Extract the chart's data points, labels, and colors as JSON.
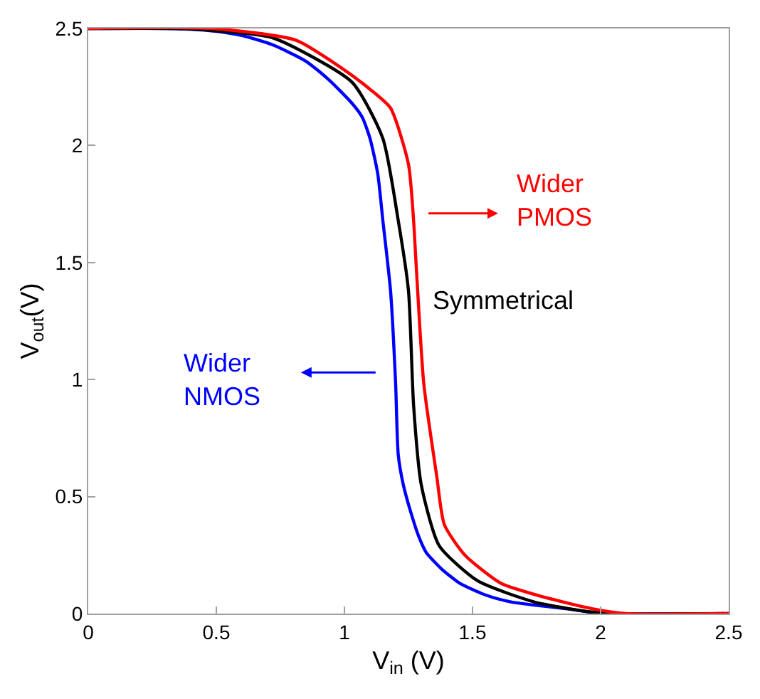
{
  "chart_data": {
    "type": "line",
    "xlabel": "V$_{in}$ (V)",
    "ylabel": "V$_{out}$(V)",
    "xlim": [
      0,
      2.5
    ],
    "xticks": [
      0,
      0.5,
      1,
      1.5,
      2,
      2.5
    ],
    "ylim": [
      0,
      2.5
    ],
    "yticks": [
      0,
      0.5,
      1,
      1.5,
      2,
      2.5
    ],
    "grid": false,
    "marker": "none",
    "line_style": "solid",
    "series": [
      {
        "name": "Wider NMOS",
        "color": "#0000ff",
        "x": [
          0,
          0.3,
          0.48,
          0.6,
          0.72,
          0.85,
          0.94,
          1.03,
          1.07,
          1.1,
          1.13,
          1.15,
          1.18,
          1.2,
          1.21,
          1.23,
          1.26,
          1.29,
          1.32,
          1.38,
          1.45,
          1.55,
          1.65,
          1.87,
          2.01,
          2.5
        ],
        "values": [
          2.5,
          2.5,
          2.49,
          2.47,
          2.43,
          2.36,
          2.28,
          2.18,
          2.12,
          2.03,
          1.88,
          1.68,
          1.38,
          0.98,
          0.68,
          0.55,
          0.43,
          0.33,
          0.26,
          0.19,
          0.13,
          0.08,
          0.05,
          0.02,
          0,
          0
        ]
      },
      {
        "name": "Symmetrical",
        "color": "#000000",
        "x": [
          0,
          0.35,
          0.5,
          0.72,
          1.03,
          1.15,
          1.21,
          1.25,
          1.27,
          1.3,
          1.37,
          1.52,
          1.74,
          1.94,
          2.05,
          2.5
        ],
        "values": [
          2.5,
          2.5,
          2.49,
          2.46,
          2.27,
          2.03,
          1.68,
          1.38,
          0.89,
          0.55,
          0.29,
          0.14,
          0.05,
          0.01,
          0,
          0
        ]
      },
      {
        "name": "Wider PMOS",
        "color": "#ff0000",
        "x": [
          0,
          0.48,
          0.81,
          0.99,
          1.1,
          1.18,
          1.25,
          1.27,
          1.28,
          1.31,
          1.36,
          1.39,
          1.47,
          1.61,
          1.78,
          1.97,
          2.1,
          2.5
        ],
        "values": [
          2.5,
          2.5,
          2.45,
          2.33,
          2.24,
          2.16,
          1.92,
          1.68,
          1.49,
          0.98,
          0.59,
          0.38,
          0.25,
          0.13,
          0.07,
          0.02,
          0,
          0
        ]
      }
    ]
  }
}
